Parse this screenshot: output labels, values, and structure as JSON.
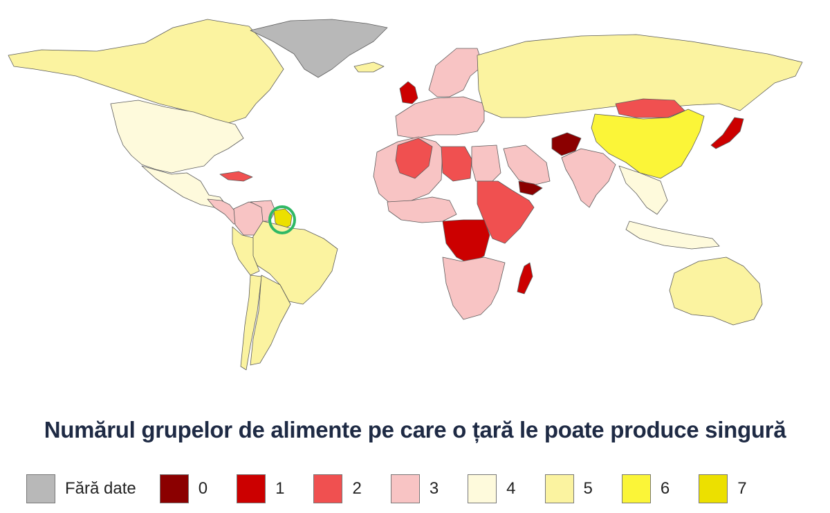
{
  "title": "Numărul grupelor de alimente pe care o țară le poate produce singură",
  "palette": {
    "nodata": "#b8b8b8",
    "0": "#8b0000",
    "1": "#cc0000",
    "2": "#f05050",
    "3": "#f8c4c4",
    "4": "#fefadc",
    "5": "#fbf3a0",
    "6": "#fbf538",
    "7": "#ece000",
    "highlight_ring": "#2fb865"
  },
  "legend": [
    {
      "label": "Fără date",
      "color": "#b8b8b8"
    },
    {
      "label": "0",
      "color": "#8b0000"
    },
    {
      "label": "1",
      "color": "#cc0000"
    },
    {
      "label": "2",
      "color": "#f05050"
    },
    {
      "label": "3",
      "color": "#f8c4c4"
    },
    {
      "label": "4",
      "color": "#fefadc"
    },
    {
      "label": "5",
      "color": "#fbf3a0"
    },
    {
      "label": "6",
      "color": "#fbf538"
    },
    {
      "label": "7",
      "color": "#ece000"
    }
  ],
  "highlighted_country": "Guyana",
  "regions": [
    {
      "name": "Greenland",
      "value": "nodata"
    },
    {
      "name": "Canada",
      "value": 5
    },
    {
      "name": "United States",
      "value": 4
    },
    {
      "name": "Mexico",
      "value": 4
    },
    {
      "name": "Cuba",
      "value": 2
    },
    {
      "name": "Central America",
      "value": 3
    },
    {
      "name": "Colombia",
      "value": 3
    },
    {
      "name": "Venezuela",
      "value": 3
    },
    {
      "name": "Guyana",
      "value": 7
    },
    {
      "name": "Brazil",
      "value": 5
    },
    {
      "name": "Argentina",
      "value": 5
    },
    {
      "name": "Chile",
      "value": 5
    },
    {
      "name": "Peru",
      "value": 5
    },
    {
      "name": "Iceland",
      "value": 5
    },
    {
      "name": "United Kingdom",
      "value": 1
    },
    {
      "name": "Scandinavia",
      "value": 3
    },
    {
      "name": "Western Europe",
      "value": 3
    },
    {
      "name": "Russia",
      "value": 5
    },
    {
      "name": "Mongolia",
      "value": 2
    },
    {
      "name": "China",
      "value": 6
    },
    {
      "name": "Japan",
      "value": 1
    },
    {
      "name": "North Africa",
      "value": 3
    },
    {
      "name": "Algeria",
      "value": 2
    },
    {
      "name": "Libya",
      "value": 2
    },
    {
      "name": "Egypt",
      "value": 3
    },
    {
      "name": "West Africa",
      "value": 3
    },
    {
      "name": "DR Congo",
      "value": 1
    },
    {
      "name": "East Africa",
      "value": 2
    },
    {
      "name": "Southern Africa",
      "value": 3
    },
    {
      "name": "Madagascar",
      "value": 1
    },
    {
      "name": "Saudi Arabia",
      "value": 3
    },
    {
      "name": "Yemen",
      "value": 0
    },
    {
      "name": "Afghanistan",
      "value": 0
    },
    {
      "name": "India",
      "value": 3
    },
    {
      "name": "Southeast Asia",
      "value": 4
    },
    {
      "name": "Indonesia",
      "value": 4
    },
    {
      "name": "Australia",
      "value": 5
    }
  ]
}
